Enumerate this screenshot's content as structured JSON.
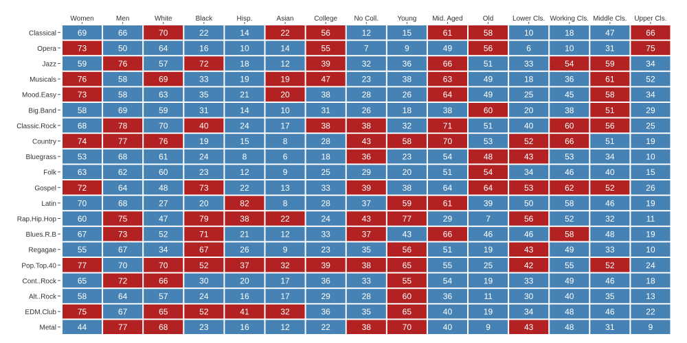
{
  "chart_data": {
    "type": "heatmap",
    "columns": [
      "Women",
      "Men",
      "White",
      "Black",
      "Hisp.",
      "Asian",
      "College",
      "No Coll.",
      "Young",
      "Mid. Aged",
      "Old",
      "Lower Cls.",
      "Working Cls.",
      "Middle Cls.",
      "Upper Cls."
    ],
    "rows": [
      "Classical",
      "Opera",
      "Jazz",
      "Musicals",
      "Mood.Easy",
      "Big.Band",
      "Classic.Rock",
      "Country",
      "Bluegrass",
      "Folk",
      "Gospel",
      "Latin",
      "Rap.Hip.Hop",
      "Blues.R.B",
      "Regagae",
      "Pop.Top.40",
      "Cont..Rock",
      "Alt..Rock",
      "EDM.Club",
      "Metal"
    ],
    "values": [
      [
        69,
        66,
        70,
        22,
        14,
        22,
        56,
        12,
        15,
        61,
        58,
        10,
        18,
        47,
        66
      ],
      [
        73,
        50,
        64,
        16,
        10,
        14,
        55,
        7,
        9,
        49,
        56,
        6,
        10,
        31,
        75
      ],
      [
        59,
        76,
        57,
        72,
        18,
        12,
        39,
        32,
        36,
        66,
        51,
        33,
        54,
        59,
        34
      ],
      [
        76,
        58,
        69,
        33,
        19,
        19,
        47,
        23,
        38,
        63,
        49,
        18,
        36,
        61,
        52
      ],
      [
        73,
        58,
        63,
        35,
        21,
        20,
        38,
        28,
        26,
        64,
        49,
        25,
        45,
        58,
        34
      ],
      [
        58,
        69,
        59,
        31,
        14,
        10,
        31,
        26,
        18,
        38,
        60,
        20,
        38,
        51,
        29
      ],
      [
        68,
        78,
        70,
        40,
        24,
        17,
        38,
        38,
        32,
        71,
        51,
        40,
        60,
        56,
        25
      ],
      [
        74,
        77,
        76,
        19,
        15,
        8,
        28,
        43,
        58,
        70,
        53,
        52,
        66,
        51,
        19
      ],
      [
        53,
        68,
        61,
        24,
        8,
        6,
        18,
        36,
        23,
        54,
        48,
        43,
        53,
        34,
        10
      ],
      [
        63,
        62,
        60,
        23,
        12,
        9,
        25,
        29,
        20,
        51,
        54,
        34,
        46,
        40,
        15
      ],
      [
        72,
        64,
        48,
        73,
        22,
        13,
        33,
        39,
        38,
        64,
        64,
        53,
        62,
        52,
        26
      ],
      [
        70,
        68,
        27,
        20,
        82,
        8,
        28,
        37,
        59,
        61,
        39,
        50,
        58,
        46,
        19
      ],
      [
        60,
        75,
        47,
        79,
        38,
        22,
        24,
        43,
        77,
        29,
        7,
        56,
        52,
        32,
        11
      ],
      [
        67,
        73,
        52,
        71,
        21,
        12,
        33,
        37,
        43,
        66,
        46,
        46,
        58,
        48,
        19
      ],
      [
        55,
        67,
        34,
        67,
        26,
        9,
        23,
        35,
        56,
        51,
        19,
        43,
        49,
        33,
        10
      ],
      [
        77,
        70,
        70,
        52,
        37,
        32,
        39,
        38,
        65,
        55,
        25,
        42,
        55,
        52,
        24
      ],
      [
        65,
        72,
        66,
        30,
        20,
        17,
        36,
        33,
        55,
        54,
        19,
        33,
        49,
        46,
        18
      ],
      [
        58,
        64,
        57,
        24,
        16,
        17,
        29,
        28,
        60,
        36,
        11,
        30,
        40,
        35,
        13
      ],
      [
        75,
        67,
        65,
        52,
        41,
        32,
        36,
        35,
        65,
        40,
        19,
        34,
        48,
        46,
        22
      ],
      [
        44,
        77,
        68,
        23,
        16,
        12,
        22,
        38,
        70,
        40,
        9,
        43,
        48,
        31,
        9
      ]
    ],
    "highlighted": [
      [
        0,
        0,
        1,
        0,
        0,
        1,
        1,
        0,
        0,
        1,
        1,
        0,
        0,
        0,
        1
      ],
      [
        1,
        0,
        0,
        0,
        0,
        0,
        1,
        0,
        0,
        0,
        1,
        0,
        0,
        0,
        1
      ],
      [
        0,
        1,
        0,
        1,
        0,
        0,
        1,
        0,
        0,
        1,
        0,
        0,
        1,
        1,
        0
      ],
      [
        1,
        0,
        1,
        0,
        0,
        1,
        1,
        0,
        0,
        1,
        0,
        0,
        0,
        1,
        0
      ],
      [
        1,
        0,
        0,
        0,
        0,
        1,
        0,
        0,
        0,
        1,
        0,
        0,
        0,
        1,
        0
      ],
      [
        0,
        0,
        0,
        0,
        0,
        0,
        0,
        0,
        0,
        0,
        1,
        0,
        0,
        1,
        0
      ],
      [
        0,
        1,
        0,
        1,
        0,
        0,
        1,
        1,
        0,
        1,
        0,
        0,
        1,
        1,
        0
      ],
      [
        1,
        1,
        1,
        0,
        0,
        0,
        0,
        1,
        1,
        1,
        0,
        1,
        1,
        0,
        0
      ],
      [
        0,
        0,
        0,
        0,
        0,
        0,
        0,
        1,
        0,
        0,
        1,
        1,
        0,
        0,
        0
      ],
      [
        0,
        0,
        0,
        0,
        0,
        0,
        0,
        0,
        0,
        0,
        1,
        0,
        0,
        0,
        0
      ],
      [
        1,
        0,
        0,
        1,
        0,
        0,
        0,
        1,
        0,
        0,
        1,
        1,
        1,
        1,
        0
      ],
      [
        0,
        0,
        0,
        0,
        1,
        0,
        0,
        0,
        1,
        1,
        0,
        0,
        0,
        0,
        0
      ],
      [
        0,
        1,
        0,
        1,
        1,
        1,
        0,
        1,
        1,
        0,
        0,
        1,
        0,
        0,
        0
      ],
      [
        0,
        1,
        0,
        1,
        0,
        0,
        0,
        1,
        0,
        1,
        0,
        0,
        1,
        0,
        0
      ],
      [
        0,
        0,
        0,
        1,
        0,
        0,
        0,
        0,
        1,
        0,
        0,
        1,
        0,
        0,
        0
      ],
      [
        1,
        0,
        1,
        1,
        1,
        1,
        1,
        1,
        1,
        0,
        0,
        1,
        0,
        1,
        0
      ],
      [
        0,
        1,
        1,
        0,
        0,
        0,
        0,
        0,
        1,
        0,
        0,
        0,
        0,
        0,
        0
      ],
      [
        0,
        0,
        0,
        0,
        0,
        0,
        0,
        0,
        1,
        0,
        0,
        0,
        0,
        0,
        0
      ],
      [
        1,
        0,
        1,
        1,
        1,
        1,
        0,
        0,
        1,
        0,
        0,
        0,
        0,
        0,
        0
      ],
      [
        0,
        1,
        1,
        0,
        0,
        0,
        0,
        1,
        1,
        0,
        0,
        1,
        0,
        0,
        0
      ]
    ],
    "colors": {
      "high": "#b22222",
      "low": "#4682b4",
      "text": "#ffffff"
    },
    "grid": false,
    "legend": "none"
  }
}
